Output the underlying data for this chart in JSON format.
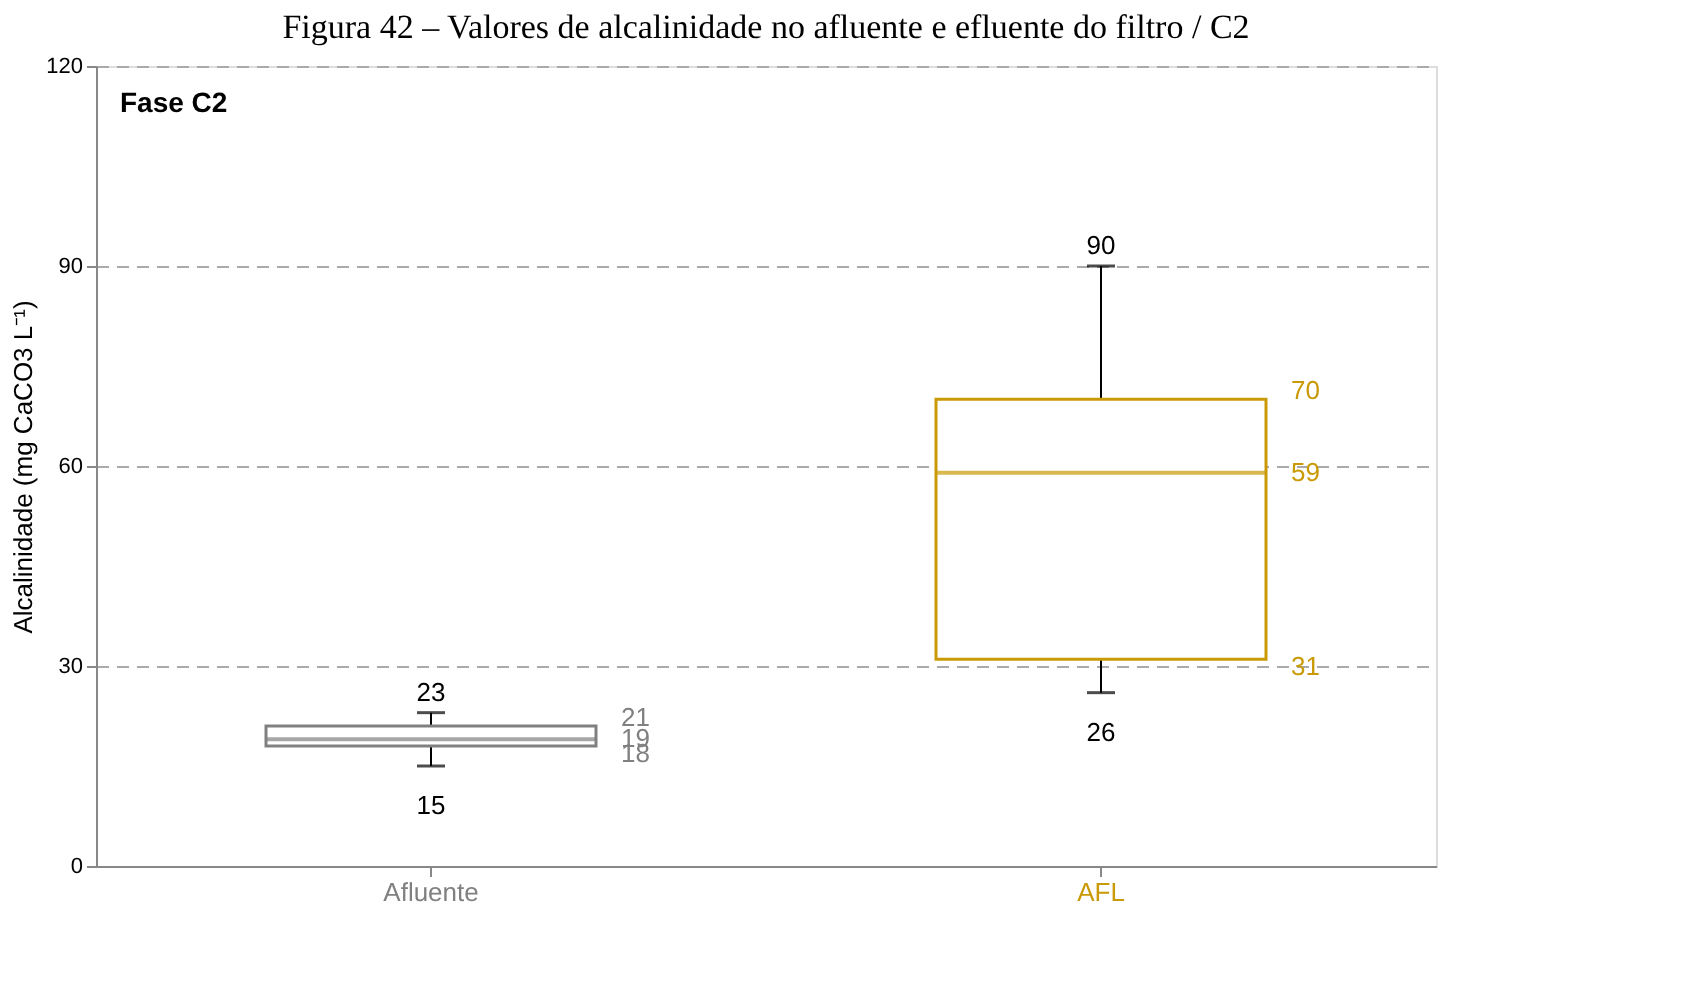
{
  "chart_data": {
    "type": "box",
    "title": "Figura 42 – Valores de alcalinidade no afluente e efluente do filtro / C2",
    "ylabel": "Alcalinidade (mg CaCO3 L⁻¹)",
    "annotations": [
      "Fase C2",
      {
        "text": "23",
        "x": "Afluente",
        "y": 23
      },
      {
        "text": "15",
        "x": "Afluente",
        "y": 15
      },
      {
        "text": "90",
        "x": "AFL",
        "y": 90
      },
      {
        "text": "26",
        "x": "AFL",
        "y": 26
      },
      "21",
      "19",
      "18",
      "70",
      "59",
      "31"
    ],
    "categories": [
      "Afluente",
      "AFL"
    ],
    "colors": [
      "#808080",
      "#c99a06"
    ],
    "boxes": [
      {
        "low": 15,
        "q1": 18,
        "median": 19,
        "q3": 21,
        "high": 23
      },
      {
        "low": 26,
        "q1": 31,
        "median": 59,
        "q3": 70,
        "high": 90
      }
    ],
    "ylim": [
      0,
      120
    ],
    "yticks": [
      0,
      30,
      60,
      90,
      120
    ],
    "grid": "y"
  }
}
